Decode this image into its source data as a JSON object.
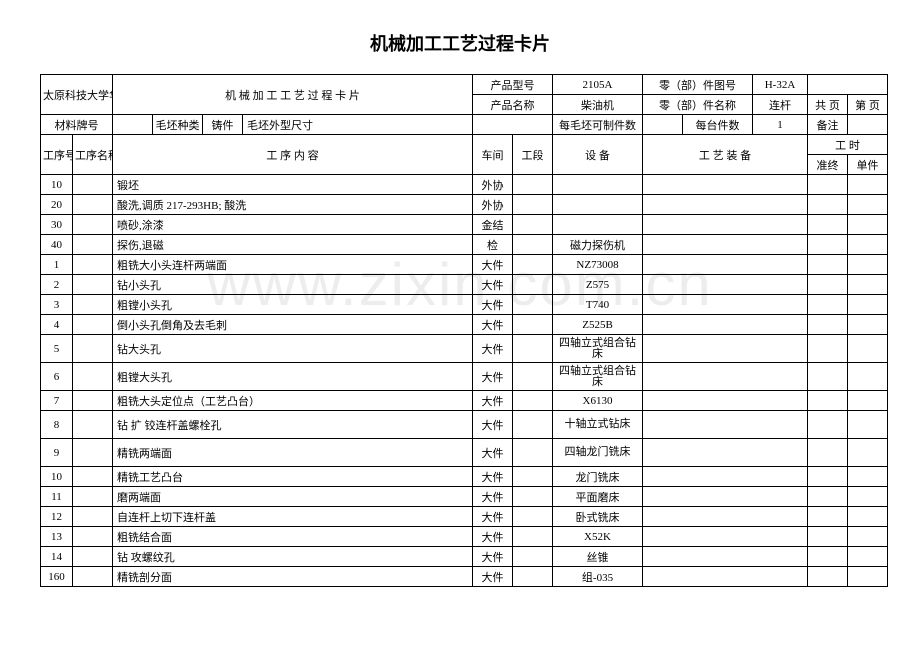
{
  "title": "机械加工工艺过程卡片",
  "watermark": "www.zixin.com.cn",
  "hdr": {
    "org": "太原科技大学华科学院",
    "doc_title": "机 械 加 工 工 艺 过 程 卡 片",
    "prod_model_lbl": "产品型号",
    "prod_model": "2105A",
    "part_dwg_lbl": "零（部）件图号",
    "part_dwg": "H-32A",
    "prod_name_lbl": "产品名称",
    "prod_name": "柴油机",
    "part_name_lbl": "零（部）件名称",
    "part_name": "连杆",
    "total_pg_lbl": "共   页",
    "page_no_lbl": "第   页",
    "mat_grade_lbl": "材料牌号",
    "blank_type_lbl": "毛坯种类",
    "blank_type": "铸件",
    "blank_dim_lbl": "毛坯外型尺寸",
    "per_blank_lbl": "每毛坯可制件数",
    "per_unit_lbl": "每台件数",
    "per_unit": "1",
    "remark_lbl": "备注"
  },
  "cols": {
    "proc_no": "工序号",
    "proc_name": "工序名称",
    "content": "工   序   内   容",
    "workshop": "车间",
    "section": "工段",
    "equip": "设   备",
    "tooling": "工    艺    装    备",
    "time": "工      时",
    "prep": "准终",
    "unit": "单件"
  },
  "rows": [
    {
      "no": "10",
      "name": "",
      "content": "锻坯",
      "ws": "外协",
      "sec": "",
      "equip": "",
      "tool": ""
    },
    {
      "no": "20",
      "name": "",
      "content": "酸洗,调质 217-293HB;  酸洗",
      "ws": "外协",
      "sec": "",
      "equip": "",
      "tool": ""
    },
    {
      "no": "30",
      "name": "",
      "content": "喷砂,涂漆",
      "ws": "金结",
      "sec": "",
      "equip": "",
      "tool": ""
    },
    {
      "no": "40",
      "name": "",
      "content": "探伤,退磁",
      "ws": "检",
      "sec": "",
      "equip": "磁力探伤机",
      "tool": ""
    },
    {
      "no": "1",
      "name": "",
      "content": "粗铣大小头连杆两端面",
      "ws": "大件",
      "sec": "",
      "equip": "NZ73008",
      "tool": ""
    },
    {
      "no": "2",
      "name": "",
      "content": "钻小头孔",
      "ws": "大件",
      "sec": "",
      "equip": "Z575",
      "tool": ""
    },
    {
      "no": "3",
      "name": "",
      "content": "粗镗小头孔",
      "ws": "大件",
      "sec": "",
      "equip": "T740",
      "tool": ""
    },
    {
      "no": "4",
      "name": "",
      "content": "倒小头孔倒角及去毛刺",
      "ws": "大件",
      "sec": "",
      "equip": "Z525B",
      "tool": ""
    },
    {
      "no": "5",
      "name": "",
      "content": "钻大头孔",
      "ws": "大件",
      "sec": "",
      "equip": "四轴立式组合钻床",
      "tool": ""
    },
    {
      "no": "6",
      "name": "",
      "content": "粗镗大头孔",
      "ws": "大件",
      "sec": "",
      "equip": "四轴立式组合钻床",
      "tool": ""
    },
    {
      "no": "7",
      "name": "",
      "content": "粗铣大头定位点（工艺凸台）",
      "ws": "大件",
      "sec": "",
      "equip": "X6130",
      "tool": ""
    },
    {
      "no": "8",
      "name": "",
      "content": "钻 扩 铰连杆盖螺栓孔",
      "ws": "大件",
      "sec": "",
      "equip": "十轴立式钻床",
      "tool": ""
    },
    {
      "no": "9",
      "name": "",
      "content": "精铣两端面",
      "ws": "大件",
      "sec": "",
      "equip": "四轴龙门铣床",
      "tool": ""
    },
    {
      "no": "10",
      "name": "",
      "content": "精铣工艺凸台",
      "ws": "大件",
      "sec": "",
      "equip": "龙门铣床",
      "tool": ""
    },
    {
      "no": "11",
      "name": "",
      "content": "磨两端面",
      "ws": "大件",
      "sec": "",
      "equip": "平面磨床",
      "tool": ""
    },
    {
      "no": "12",
      "name": "",
      "content": "自连杆上切下连杆盖",
      "ws": "大件",
      "sec": "",
      "equip": "卧式铣床",
      "tool": ""
    },
    {
      "no": "13",
      "name": "",
      "content": "粗铣结合面",
      "ws": "大件",
      "sec": "",
      "equip": "X52K",
      "tool": ""
    },
    {
      "no": "14",
      "name": "",
      "content": "钻 攻螺纹孔",
      "ws": "大件",
      "sec": "",
      "equip": "丝锥",
      "tool": ""
    },
    {
      "no": "160",
      "name": "",
      "content": "精铣剖分面",
      "ws": "大件",
      "sec": "",
      "equip": "组-035",
      "tool": ""
    }
  ]
}
